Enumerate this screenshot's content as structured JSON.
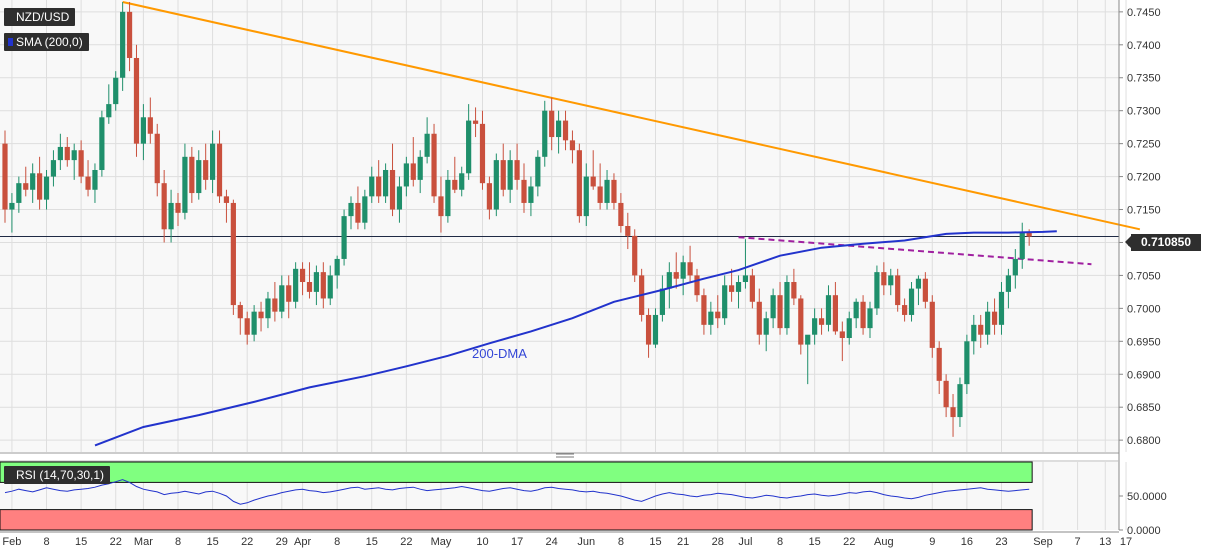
{
  "header": {
    "symbol": "NZD/USD",
    "indicator": "SMA (200,0)",
    "rsi_label": "RSI (14,70,30,1)"
  },
  "price_tag": "0.710850",
  "annotation": "200-DMA",
  "colors": {
    "bull": "#1f8f6b",
    "bear": "#c9503d",
    "sma": "#2233cc",
    "trendline": "#ff9900",
    "support": "#a020a0",
    "rsi_line": "#2233cc",
    "rsi_overbought_zone": "#80ff80",
    "rsi_oversold_zone": "#ff8080"
  },
  "chart_data": {
    "type": "candlestick",
    "series_name": "NZD/USD",
    "y_axis": {
      "ylim": [
        0.6782,
        0.7468
      ],
      "ticks": [
        "0.6800",
        "0.6850",
        "0.6900",
        "0.6950",
        "0.7000",
        "0.7050",
        "0.7100",
        "0.7150",
        "0.7200",
        "0.7250",
        "0.7300",
        "0.7350",
        "0.7400",
        "0.7450"
      ]
    },
    "x_axis": {
      "labels": [
        "Feb",
        "8",
        "15",
        "22",
        "Mar",
        "8",
        "15",
        "22",
        "29",
        "Apr",
        "8",
        "15",
        "22",
        "May",
        "10",
        "17",
        "24",
        "Jun",
        "8",
        "15",
        "21",
        "28",
        "Jul",
        "8",
        "15",
        "22",
        "Aug",
        "9",
        "16",
        "23",
        "Sep",
        "7",
        "13",
        "17"
      ],
      "label_day_index": [
        1,
        6,
        11,
        16,
        20,
        25,
        30,
        35,
        40,
        43,
        48,
        53,
        58,
        63,
        69,
        74,
        79,
        84,
        89,
        94,
        98,
        103,
        107,
        112,
        117,
        122,
        127,
        134,
        139,
        144,
        150,
        155,
        159,
        162
      ]
    },
    "trendlines": [
      {
        "name": "resistance",
        "from": {
          "day": 17,
          "price": 0.7465
        },
        "to": {
          "day": 164,
          "price": 0.712
        }
      },
      {
        "name": "support-dashed",
        "from": {
          "day": 106,
          "price": 0.7108
        },
        "to": {
          "day": 157,
          "price": 0.7067
        }
      }
    ],
    "sma200": [
      [
        13,
        0.6792
      ],
      [
        20,
        0.682
      ],
      [
        28,
        0.6838
      ],
      [
        36,
        0.6858
      ],
      [
        44,
        0.688
      ],
      [
        52,
        0.6897
      ],
      [
        58,
        0.6912
      ],
      [
        64,
        0.6928
      ],
      [
        70,
        0.6947
      ],
      [
        76,
        0.6965
      ],
      [
        82,
        0.6985
      ],
      [
        88,
        0.701
      ],
      [
        95,
        0.7028
      ],
      [
        101,
        0.7045
      ],
      [
        106,
        0.7058
      ],
      [
        112,
        0.708
      ],
      [
        118,
        0.7092
      ],
      [
        124,
        0.7098
      ],
      [
        130,
        0.7103
      ],
      [
        136,
        0.7113
      ],
      [
        140,
        0.7115
      ],
      [
        145,
        0.7115
      ],
      [
        150,
        0.7116
      ],
      [
        152,
        0.7117
      ]
    ],
    "candles": [
      [
        0,
        0.725,
        0.727,
        0.713,
        0.715
      ],
      [
        1,
        0.715,
        0.7175,
        0.7115,
        0.716
      ],
      [
        2,
        0.716,
        0.72,
        0.7145,
        0.719
      ],
      [
        3,
        0.719,
        0.7215,
        0.717,
        0.718
      ],
      [
        4,
        0.718,
        0.722,
        0.716,
        0.7205
      ],
      [
        5,
        0.7205,
        0.723,
        0.715,
        0.7165
      ],
      [
        6,
        0.7165,
        0.721,
        0.715,
        0.72
      ],
      [
        7,
        0.72,
        0.724,
        0.7185,
        0.7225
      ],
      [
        8,
        0.7225,
        0.7265,
        0.721,
        0.7245
      ],
      [
        9,
        0.7245,
        0.726,
        0.7215,
        0.7225
      ],
      [
        10,
        0.7225,
        0.725,
        0.7195,
        0.724
      ],
      [
        11,
        0.724,
        0.7255,
        0.719,
        0.72
      ],
      [
        12,
        0.72,
        0.7225,
        0.717,
        0.718
      ],
      [
        13,
        0.718,
        0.722,
        0.716,
        0.721
      ],
      [
        14,
        0.721,
        0.73,
        0.72,
        0.729
      ],
      [
        15,
        0.729,
        0.734,
        0.728,
        0.731
      ],
      [
        16,
        0.731,
        0.736,
        0.73,
        0.735
      ],
      [
        17,
        0.735,
        0.7465,
        0.733,
        0.745
      ],
      [
        18,
        0.745,
        0.7465,
        0.736,
        0.738
      ],
      [
        19,
        0.738,
        0.74,
        0.723,
        0.725
      ],
      [
        20,
        0.725,
        0.731,
        0.7225,
        0.729
      ],
      [
        21,
        0.729,
        0.732,
        0.725,
        0.7265
      ],
      [
        22,
        0.7265,
        0.728,
        0.717,
        0.719
      ],
      [
        23,
        0.719,
        0.721,
        0.71,
        0.712
      ],
      [
        24,
        0.712,
        0.718,
        0.71,
        0.716
      ],
      [
        25,
        0.716,
        0.7175,
        0.7125,
        0.7145
      ],
      [
        26,
        0.7145,
        0.725,
        0.7135,
        0.723
      ],
      [
        27,
        0.723,
        0.7245,
        0.716,
        0.7175
      ],
      [
        28,
        0.7175,
        0.724,
        0.7165,
        0.7225
      ],
      [
        29,
        0.7225,
        0.725,
        0.718,
        0.7195
      ],
      [
        30,
        0.7195,
        0.727,
        0.7175,
        0.725
      ],
      [
        31,
        0.725,
        0.727,
        0.716,
        0.717
      ],
      [
        32,
        0.717,
        0.718,
        0.713,
        0.716
      ],
      [
        33,
        0.716,
        0.7165,
        0.699,
        0.7005
      ],
      [
        34,
        0.7005,
        0.701,
        0.696,
        0.6985
      ],
      [
        35,
        0.6985,
        0.6995,
        0.6945,
        0.696
      ],
      [
        36,
        0.696,
        0.7005,
        0.695,
        0.6995
      ],
      [
        37,
        0.6995,
        0.701,
        0.6965,
        0.6985
      ],
      [
        38,
        0.6985,
        0.7025,
        0.697,
        0.7015
      ],
      [
        39,
        0.7015,
        0.704,
        0.698,
        0.6995
      ],
      [
        40,
        0.6995,
        0.705,
        0.6985,
        0.7035
      ],
      [
        41,
        0.7035,
        0.705,
        0.6985,
        0.701
      ],
      [
        42,
        0.701,
        0.707,
        0.7,
        0.706
      ],
      [
        43,
        0.706,
        0.707,
        0.702,
        0.704
      ],
      [
        44,
        0.704,
        0.707,
        0.7015,
        0.7025
      ],
      [
        45,
        0.7025,
        0.7065,
        0.7005,
        0.7055
      ],
      [
        46,
        0.7055,
        0.707,
        0.7,
        0.7015
      ],
      [
        47,
        0.7015,
        0.7065,
        0.7005,
        0.705
      ],
      [
        48,
        0.705,
        0.708,
        0.703,
        0.7075
      ],
      [
        49,
        0.7075,
        0.715,
        0.7065,
        0.714
      ],
      [
        50,
        0.714,
        0.717,
        0.712,
        0.716
      ],
      [
        51,
        0.716,
        0.7185,
        0.712,
        0.713
      ],
      [
        52,
        0.713,
        0.718,
        0.712,
        0.717
      ],
      [
        53,
        0.717,
        0.7215,
        0.716,
        0.72
      ],
      [
        54,
        0.72,
        0.7225,
        0.716,
        0.717
      ],
      [
        55,
        0.717,
        0.722,
        0.716,
        0.721
      ],
      [
        56,
        0.721,
        0.725,
        0.714,
        0.715
      ],
      [
        57,
        0.715,
        0.72,
        0.713,
        0.7185
      ],
      [
        58,
        0.7185,
        0.723,
        0.717,
        0.722
      ],
      [
        59,
        0.722,
        0.726,
        0.7185,
        0.7195
      ],
      [
        60,
        0.7195,
        0.724,
        0.7175,
        0.723
      ],
      [
        61,
        0.723,
        0.729,
        0.722,
        0.7265
      ],
      [
        62,
        0.7265,
        0.728,
        0.716,
        0.717
      ],
      [
        63,
        0.717,
        0.72,
        0.7115,
        0.714
      ],
      [
        64,
        0.714,
        0.721,
        0.713,
        0.7195
      ],
      [
        65,
        0.7195,
        0.723,
        0.7175,
        0.718
      ],
      [
        66,
        0.718,
        0.7215,
        0.717,
        0.7205
      ],
      [
        67,
        0.7205,
        0.731,
        0.7195,
        0.7285
      ],
      [
        68,
        0.7285,
        0.7305,
        0.726,
        0.728
      ],
      [
        69,
        0.728,
        0.73,
        0.718,
        0.719
      ],
      [
        70,
        0.719,
        0.72,
        0.7135,
        0.715
      ],
      [
        71,
        0.715,
        0.7235,
        0.714,
        0.7225
      ],
      [
        72,
        0.7225,
        0.725,
        0.717,
        0.718
      ],
      [
        73,
        0.718,
        0.724,
        0.716,
        0.7225
      ],
      [
        74,
        0.7225,
        0.725,
        0.718,
        0.7195
      ],
      [
        75,
        0.7195,
        0.722,
        0.7145,
        0.716
      ],
      [
        76,
        0.716,
        0.72,
        0.714,
        0.7185
      ],
      [
        77,
        0.7185,
        0.724,
        0.717,
        0.723
      ],
      [
        78,
        0.723,
        0.7315,
        0.7215,
        0.73
      ],
      [
        79,
        0.73,
        0.732,
        0.724,
        0.726
      ],
      [
        80,
        0.726,
        0.73,
        0.7235,
        0.7285
      ],
      [
        81,
        0.7285,
        0.73,
        0.724,
        0.7255
      ],
      [
        82,
        0.7255,
        0.727,
        0.722,
        0.724
      ],
      [
        83,
        0.724,
        0.725,
        0.713,
        0.714
      ],
      [
        84,
        0.714,
        0.722,
        0.7125,
        0.72
      ],
      [
        85,
        0.72,
        0.724,
        0.718,
        0.7185
      ],
      [
        86,
        0.7185,
        0.722,
        0.715,
        0.716
      ],
      [
        87,
        0.716,
        0.721,
        0.715,
        0.7195
      ],
      [
        88,
        0.7195,
        0.7205,
        0.715,
        0.716
      ],
      [
        89,
        0.716,
        0.7175,
        0.7115,
        0.7125
      ],
      [
        90,
        0.7125,
        0.7145,
        0.709,
        0.711
      ],
      [
        91,
        0.711,
        0.712,
        0.704,
        0.705
      ],
      [
        92,
        0.705,
        0.706,
        0.698,
        0.699
      ],
      [
        93,
        0.699,
        0.7,
        0.6925,
        0.6945
      ],
      [
        94,
        0.6945,
        0.7,
        0.694,
        0.699
      ],
      [
        95,
        0.699,
        0.705,
        0.698,
        0.703
      ],
      [
        96,
        0.703,
        0.707,
        0.7,
        0.7055
      ],
      [
        97,
        0.7055,
        0.7085,
        0.703,
        0.7045
      ],
      [
        98,
        0.7045,
        0.708,
        0.702,
        0.707
      ],
      [
        99,
        0.707,
        0.7095,
        0.704,
        0.705
      ],
      [
        100,
        0.705,
        0.706,
        0.701,
        0.702
      ],
      [
        101,
        0.702,
        0.703,
        0.696,
        0.6975
      ],
      [
        102,
        0.6975,
        0.701,
        0.696,
        0.6995
      ],
      [
        103,
        0.6995,
        0.702,
        0.697,
        0.6985
      ],
      [
        104,
        0.6985,
        0.705,
        0.6975,
        0.7035
      ],
      [
        105,
        0.7035,
        0.706,
        0.701,
        0.7025
      ],
      [
        106,
        0.7025,
        0.705,
        0.7,
        0.704
      ],
      [
        107,
        0.704,
        0.7105,
        0.703,
        0.705
      ],
      [
        108,
        0.705,
        0.706,
        0.7,
        0.701
      ],
      [
        109,
        0.701,
        0.703,
        0.6945,
        0.696
      ],
      [
        110,
        0.696,
        0.6995,
        0.6935,
        0.6985
      ],
      [
        111,
        0.6985,
        0.703,
        0.697,
        0.702
      ],
      [
        112,
        0.702,
        0.704,
        0.696,
        0.697
      ],
      [
        113,
        0.697,
        0.705,
        0.696,
        0.704
      ],
      [
        114,
        0.704,
        0.706,
        0.7005,
        0.7015
      ],
      [
        115,
        0.7015,
        0.702,
        0.693,
        0.6945
      ],
      [
        116,
        0.6945,
        0.6955,
        0.6885,
        0.696
      ],
      [
        117,
        0.696,
        0.7,
        0.6945,
        0.6985
      ],
      [
        118,
        0.6985,
        0.7,
        0.696,
        0.6975
      ],
      [
        119,
        0.6975,
        0.7035,
        0.6965,
        0.702
      ],
      [
        120,
        0.702,
        0.704,
        0.696,
        0.6965
      ],
      [
        121,
        0.6965,
        0.698,
        0.692,
        0.6955
      ],
      [
        122,
        0.6955,
        0.6995,
        0.6945,
        0.6985
      ],
      [
        123,
        0.6985,
        0.7015,
        0.697,
        0.701
      ],
      [
        124,
        0.701,
        0.702,
        0.696,
        0.697
      ],
      [
        125,
        0.697,
        0.701,
        0.6955,
        0.7
      ],
      [
        126,
        0.7,
        0.7065,
        0.699,
        0.7055
      ],
      [
        127,
        0.7055,
        0.707,
        0.702,
        0.7035
      ],
      [
        128,
        0.7035,
        0.706,
        0.702,
        0.705
      ],
      [
        129,
        0.705,
        0.706,
        0.6995,
        0.7005
      ],
      [
        130,
        0.7005,
        0.7015,
        0.698,
        0.699
      ],
      [
        131,
        0.699,
        0.704,
        0.698,
        0.703
      ],
      [
        132,
        0.703,
        0.705,
        0.7005,
        0.7045
      ],
      [
        133,
        0.7045,
        0.7055,
        0.7,
        0.701
      ],
      [
        134,
        0.701,
        0.702,
        0.6925,
        0.694
      ],
      [
        135,
        0.694,
        0.695,
        0.687,
        0.689
      ],
      [
        136,
        0.689,
        0.69,
        0.6835,
        0.685
      ],
      [
        137,
        0.685,
        0.687,
        0.6805,
        0.6835
      ],
      [
        138,
        0.6835,
        0.6895,
        0.682,
        0.6885
      ],
      [
        139,
        0.6885,
        0.696,
        0.687,
        0.695
      ],
      [
        140,
        0.695,
        0.699,
        0.693,
        0.6975
      ],
      [
        141,
        0.6975,
        0.699,
        0.694,
        0.696
      ],
      [
        142,
        0.696,
        0.701,
        0.6945,
        0.6995
      ],
      [
        143,
        0.6995,
        0.7015,
        0.696,
        0.6975
      ],
      [
        144,
        0.6975,
        0.704,
        0.696,
        0.7025
      ],
      [
        145,
        0.7025,
        0.706,
        0.7,
        0.705
      ],
      [
        146,
        0.705,
        0.709,
        0.703,
        0.7075
      ],
      [
        147,
        0.7075,
        0.713,
        0.706,
        0.7115
      ],
      [
        148,
        0.7115,
        0.712,
        0.7095,
        0.7109
      ]
    ],
    "rsi": {
      "label": "RSI (14,70,30,1)",
      "ylim": [
        0,
        100
      ],
      "ticks": [
        "50.0000",
        "0.0000"
      ],
      "overbought": 70,
      "oversold": 30,
      "values": [
        55,
        57,
        60,
        58,
        56,
        59,
        62,
        60,
        58,
        57,
        59,
        60,
        61,
        63,
        66,
        68,
        71,
        74,
        70,
        64,
        60,
        58,
        56,
        52,
        54,
        55,
        57,
        55,
        53,
        56,
        57,
        54,
        50,
        42,
        38,
        40,
        44,
        47,
        50,
        52,
        55,
        57,
        59,
        60,
        58,
        57,
        55,
        56,
        58,
        60,
        62,
        63,
        60,
        61,
        62,
        60,
        59,
        61,
        62,
        63,
        60,
        58,
        59,
        60,
        61,
        62,
        64,
        62,
        60,
        58,
        57,
        59,
        61,
        62,
        60,
        58,
        57,
        59,
        62,
        63,
        61,
        60,
        59,
        57,
        56,
        57,
        55,
        54,
        52,
        50,
        47,
        44,
        42,
        46,
        50,
        53,
        55,
        53,
        52,
        50,
        49,
        51,
        52,
        54,
        53,
        52,
        50,
        48,
        47,
        49,
        51,
        50,
        48,
        47,
        49,
        50,
        52,
        53,
        51,
        50,
        51,
        53,
        55,
        54,
        56,
        57,
        55,
        52,
        50,
        49,
        47,
        46,
        48,
        51,
        53,
        55,
        57,
        58,
        59,
        60,
        61,
        62,
        60,
        59,
        58,
        57,
        58,
        59,
        60
      ]
    }
  }
}
